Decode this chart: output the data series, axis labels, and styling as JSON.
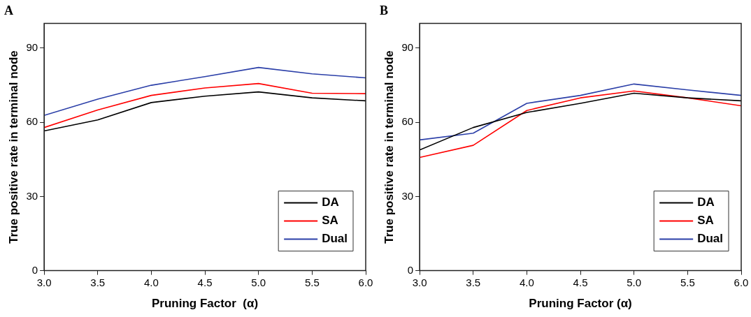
{
  "chart_data": [
    {
      "type": "line",
      "title": "A",
      "xlabel": "Pruning Factor  (α)",
      "ylabel": "True positive rate in terminal node",
      "x": [
        3.0,
        3.5,
        4.0,
        4.5,
        5.0,
        5.5,
        6.0
      ],
      "series": [
        {
          "name": "DA",
          "color": "#000000",
          "values": [
            56.5,
            61,
            68,
            70.6,
            72.3,
            69.9,
            68.7
          ]
        },
        {
          "name": "SA",
          "color": "#ff0000",
          "values": [
            57.9,
            65,
            70.9,
            73.9,
            75.7,
            71.8,
            71.6
          ]
        },
        {
          "name": "Dual",
          "color": "#2b3fa8",
          "values": [
            62.8,
            69.4,
            75,
            78.5,
            82.2,
            79.6,
            78
          ]
        }
      ],
      "xlim": [
        3.0,
        6.0
      ],
      "xticks": [
        {
          "value": 3,
          "label": "3.0"
        },
        3.5,
        {
          "value": 4,
          "label": "4.0"
        },
        4.5,
        {
          "value": 5,
          "label": "5.0"
        },
        5.5,
        {
          "value": 6,
          "label": "6.0"
        }
      ],
      "ylim": [
        0,
        100
      ],
      "yticks": [
        0,
        30,
        60,
        90
      ],
      "grid": false,
      "legend": "bottom right",
      "marker": "none",
      "line_style": "solid"
    },
    {
      "type": "line",
      "title": "B",
      "xlabel": "Pruning Factor (α)",
      "ylabel": "True positive rate in terminal node",
      "x": [
        3.0,
        3.5,
        4.0,
        4.5,
        5.0,
        5.5,
        6.0
      ],
      "series": [
        {
          "name": "DA",
          "color": "#000000",
          "values": [
            48.8,
            57.9,
            64,
            67.7,
            71.8,
            69.9,
            68.7
          ]
        },
        {
          "name": "SA",
          "color": "#ff0000",
          "values": [
            45.8,
            50.7,
            64.8,
            69.9,
            72.7,
            69.9,
            66.7
          ]
        },
        {
          "name": "Dual",
          "color": "#2b3fa8",
          "values": [
            52.9,
            55.6,
            67.7,
            70.9,
            75.5,
            73.1,
            70.9
          ]
        }
      ],
      "xlim": [
        3.0,
        6.0
      ],
      "xticks": [
        {
          "value": 3,
          "label": "3.0"
        },
        3.5,
        {
          "value": 4,
          "label": "4.0"
        },
        4.5,
        {
          "value": 5,
          "label": "5.0"
        },
        5.5,
        {
          "value": 6,
          "label": "6.0"
        }
      ],
      "ylim": [
        0,
        100
      ],
      "yticks": [
        0,
        30,
        60,
        90
      ],
      "grid": false,
      "legend": "bottom right",
      "marker": "none",
      "line_style": "solid"
    }
  ]
}
